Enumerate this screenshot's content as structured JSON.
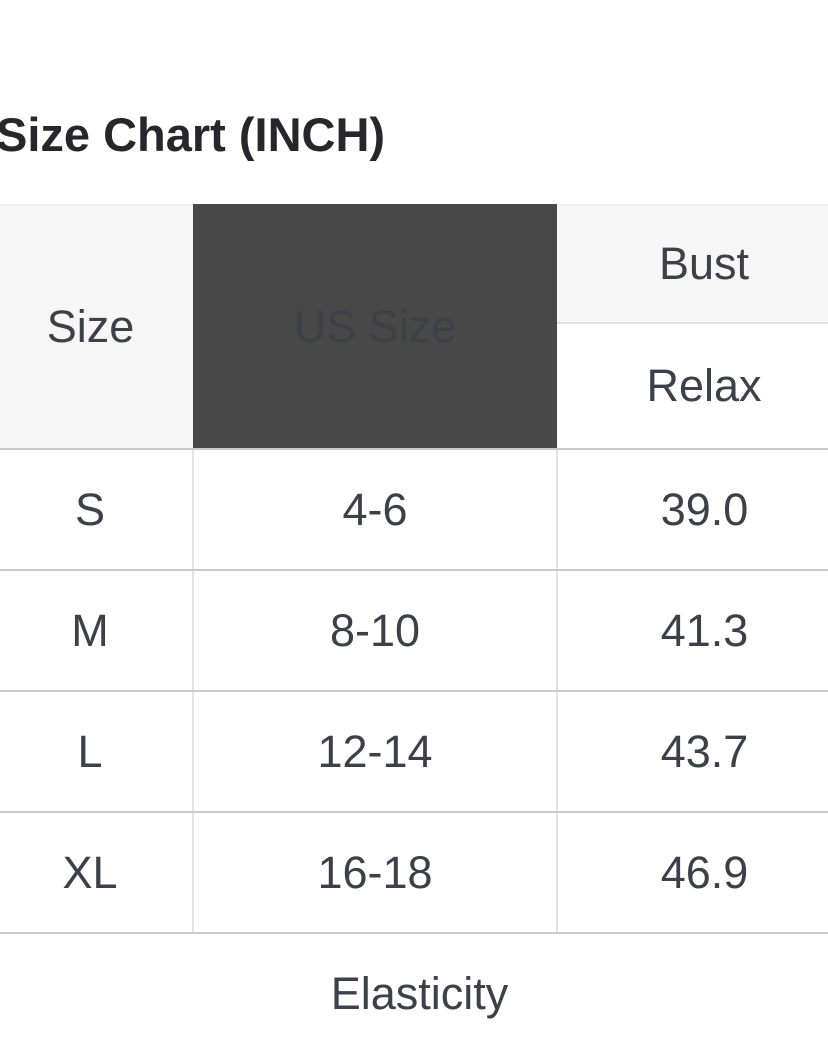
{
  "page": {
    "title": "Size Chart (INCH)"
  },
  "size_table": {
    "header": {
      "size_label": "Size",
      "us_size_label": "US Size",
      "bust_label": "Bust",
      "relax_label": "Relax"
    },
    "rows": [
      {
        "size": "S",
        "us_size": "4-6",
        "bust_relax": "39.0"
      },
      {
        "size": "M",
        "us_size": "8-10",
        "bust_relax": "41.3"
      },
      {
        "size": "L",
        "us_size": "12-14",
        "bust_relax": "43.7"
      },
      {
        "size": "XL",
        "us_size": "16-18",
        "bust_relax": "46.9"
      }
    ],
    "footer": {
      "elasticity_label": "Elasticity"
    }
  },
  "colors": {
    "dark_header_bg": "#484848",
    "dark_header_text": "#ffffff",
    "light_header_bg": "#f6f6f6",
    "row_border": "#c9c9c9",
    "column_border": "#e2e2e2",
    "title_text": "#26262c",
    "header_text": "#2c2e34",
    "cell_text": "#3c4048"
  }
}
